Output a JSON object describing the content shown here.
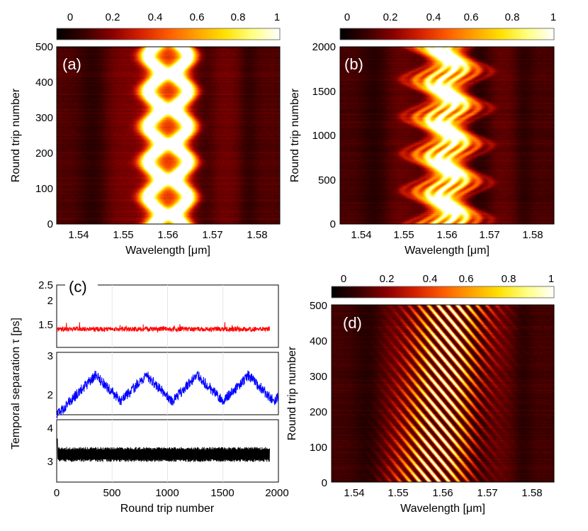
{
  "colors": {
    "hot": [
      "#000000",
      "#3a0000",
      "#8a0000",
      "#d42000",
      "#ff5a00",
      "#ffa000",
      "#ffe000",
      "#ffff80",
      "#ffffff"
    ],
    "red_series": "#ff0000",
    "blue_series": "#0000ff",
    "black_series": "#000000"
  },
  "chart_data": [
    {
      "type": "heatmap",
      "panel_label": "(a)",
      "xlabel": "Wavelength [μm]",
      "ylabel": "Round trip number",
      "xlim": [
        1.535,
        1.585
      ],
      "ylim": [
        0,
        500
      ],
      "xticks": [
        "1.54",
        "1.55",
        "1.56",
        "1.57",
        "1.58"
      ],
      "yticks": [
        "0",
        "100",
        "200",
        "300",
        "400",
        "500"
      ],
      "colorbar": {
        "ticks": [
          "0",
          "0.2",
          "0.4",
          "0.6",
          "0.8",
          "1"
        ],
        "range": [
          0,
          1
        ]
      },
      "features": {
        "centers_um": [
          1.5568,
          1.5632
        ],
        "oscillation_amp_um": 0.0013,
        "oscillation_period_rt": 100,
        "phase": "opposite"
      }
    },
    {
      "type": "heatmap",
      "panel_label": "(b)",
      "xlabel": "Wavelength [μm]",
      "ylabel": "Round trip number",
      "xlim": [
        1.535,
        1.585
      ],
      "ylim": [
        0,
        2000
      ],
      "xticks": [
        "1.54",
        "1.55",
        "1.56",
        "1.57",
        "1.58"
      ],
      "yticks": [
        "0",
        "500",
        "1000",
        "1500",
        "2000"
      ],
      "colorbar": {
        "ticks": [
          "0",
          "0.2",
          "0.4",
          "0.6",
          "0.8",
          "1"
        ],
        "range": [
          0,
          1
        ]
      },
      "features": {
        "centers_um": [
          1.5575,
          1.5625
        ],
        "oscillation_amp_um": 0.002,
        "oscillation_period_rt": 420
      }
    },
    {
      "type": "line",
      "panel_label": "(c)",
      "xlabel": "Round trip number",
      "ylabel": "Temporal separation τ [ps]",
      "xlim": [
        0,
        2000
      ],
      "xticks": [
        "0",
        "500",
        "1000",
        "1500",
        "2000"
      ],
      "series": [
        {
          "name": "a",
          "color": "red",
          "ylim": [
            1.2,
            2.5
          ],
          "yticks": [
            "1.5",
            "2",
            "2.5"
          ],
          "mean": 1.58,
          "noise": 0.05,
          "x_end": 1920
        },
        {
          "name": "b",
          "color": "blue",
          "ylim": [
            1.7,
            3.0
          ],
          "yticks": [
            "2",
            "3"
          ],
          "mean": 2.25,
          "osc_amp": 0.3,
          "osc_period": 460,
          "x_end": 2000
        },
        {
          "name": "d",
          "color": "black",
          "ylim": [
            2.7,
            4.0
          ],
          "yticks": [
            "3",
            "4"
          ],
          "low": 3.15,
          "high": 3.4,
          "x_end": 1920
        }
      ]
    },
    {
      "type": "heatmap",
      "panel_label": "(d)",
      "xlabel": "Wavelength [μm]",
      "ylabel": "Round trip number",
      "xlim": [
        1.535,
        1.585
      ],
      "ylim": [
        0,
        500
      ],
      "xticks": [
        "1.54",
        "1.55",
        "1.56",
        "1.57",
        "1.58"
      ],
      "yticks": [
        "0",
        "100",
        "200",
        "300",
        "400",
        "500"
      ],
      "colorbar": {
        "ticks": [
          "0",
          "0.2",
          "0.4",
          "0.6",
          "0.8",
          "1"
        ],
        "range": [
          0,
          1
        ]
      },
      "features": {
        "center_um": 1.56,
        "fringe_spacing_um": 0.0022,
        "drift_um_per_rt": -0.00045
      }
    }
  ]
}
